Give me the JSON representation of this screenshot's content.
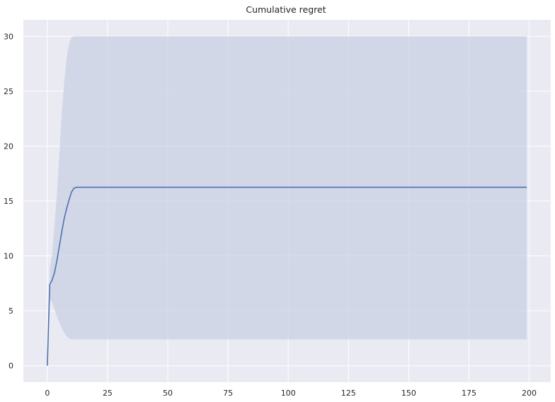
{
  "chart_data": {
    "type": "line",
    "title": "Cumulative regret",
    "xlabel": "",
    "ylabel": "",
    "xlim": [
      -9.95,
      208.95
    ],
    "ylim": [
      -1.5,
      31.5
    ],
    "xticks": [
      0,
      25,
      50,
      75,
      100,
      125,
      150,
      175,
      200
    ],
    "yticks": [
      0,
      5,
      10,
      15,
      20,
      25,
      30
    ],
    "grid": true,
    "style": "seaborn-darkgrid",
    "colors": {
      "background": "#EAEAF2",
      "grid": "#FFFFFF",
      "line": "#4C72B0",
      "band": "#C9D0E3",
      "text": "#262626"
    },
    "series": [
      {
        "x": [
          0,
          1,
          2,
          3,
          4,
          5,
          6,
          7,
          8,
          9,
          10,
          11,
          12,
          13,
          20,
          50,
          100,
          150,
          199
        ],
        "y": [
          0.0,
          7.4,
          7.8,
          8.5,
          9.6,
          10.9,
          12.2,
          13.4,
          14.3,
          15.1,
          15.8,
          16.15,
          16.25,
          16.25,
          16.25,
          16.25,
          16.25,
          16.25,
          16.25
        ]
      }
    ],
    "band": {
      "x": [
        1,
        2,
        3,
        4,
        5,
        6,
        7,
        8,
        9,
        10,
        11,
        12,
        13,
        20,
        100,
        199
      ],
      "lower": [
        6.0,
        5.8,
        5.1,
        4.5,
        3.9,
        3.4,
        3.0,
        2.7,
        2.5,
        2.4,
        2.4,
        2.4,
        2.4,
        2.4,
        2.4,
        2.4
      ],
      "upper": [
        8.8,
        10.2,
        12.8,
        15.8,
        19.3,
        23.0,
        25.8,
        28.0,
        29.3,
        29.9,
        30.0,
        30.0,
        30.0,
        30.0,
        30.0,
        30.0
      ]
    }
  }
}
